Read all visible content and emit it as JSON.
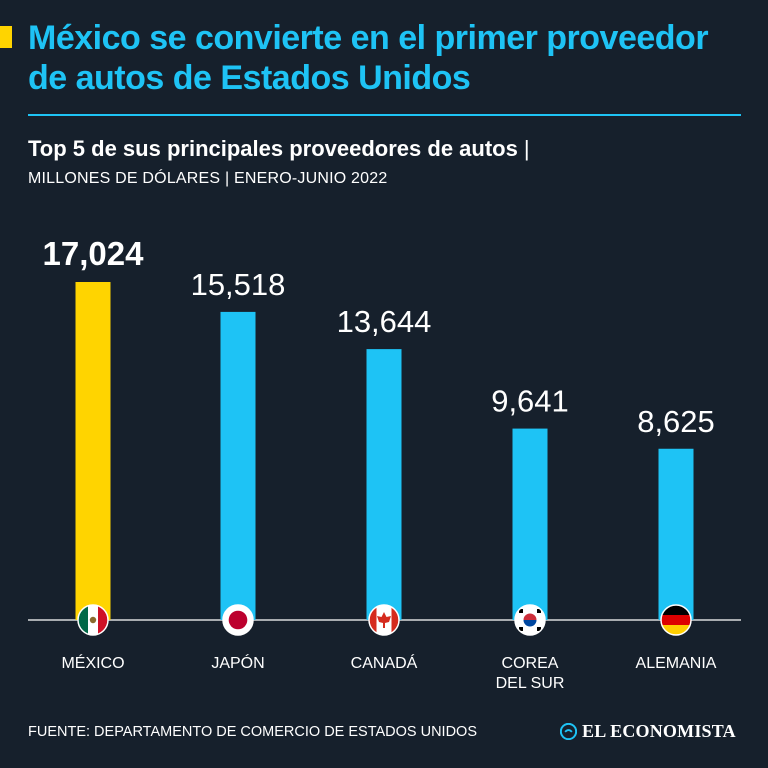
{
  "header": {
    "title": "México se convierte en el primer proveedor de autos de Estados Unidos",
    "subtitle": "Top 5 de sus principales proveedores de autos",
    "subtitle_separator": "|",
    "units": "MILLONES DE DÓLARES | ENERO-JUNIO 2022"
  },
  "colors": {
    "background": "#16202c",
    "highlight": "#ffd400",
    "bar": "#1ec3f5",
    "title": "#1ec3f5",
    "text": "#ffffff"
  },
  "chart_data": {
    "type": "bar",
    "title": "Top 5 de sus principales proveedores de autos",
    "ylabel": "MILLONES DE DÓLARES",
    "ylim": [
      0,
      17024
    ],
    "categories": [
      "MÉXICO",
      "JAPÓN",
      "CANADÁ",
      "COREA DEL SUR",
      "ALEMANIA"
    ],
    "category_label_lines": [
      [
        "MÉXICO"
      ],
      [
        "JAPÓN"
      ],
      [
        "CANADÁ"
      ],
      [
        "COREA",
        "DEL SUR"
      ],
      [
        "ALEMANIA"
      ]
    ],
    "values": [
      17024,
      15518,
      13644,
      9641,
      8625
    ],
    "value_labels": [
      "17,024",
      "15,518",
      "13,644",
      "9,641",
      "8,625"
    ],
    "highlight_index": 0,
    "flags": [
      "mexico-flag-icon",
      "japan-flag-icon",
      "canada-flag-icon",
      "south-korea-flag-icon",
      "germany-flag-icon"
    ]
  },
  "footer": {
    "source": "FUENTE: DEPARTAMENTO DE COMERCIO DE ESTADOS UNIDOS",
    "brand": "EL ECONOMISTA"
  }
}
